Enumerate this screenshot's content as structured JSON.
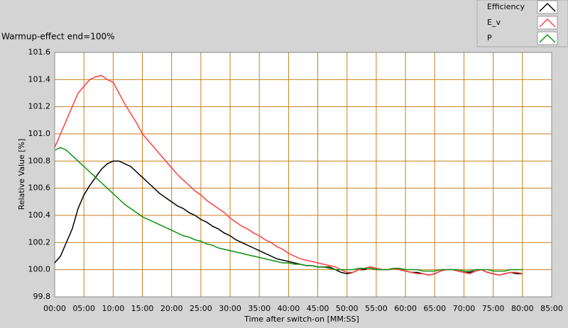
{
  "chart_data": {
    "type": "line",
    "title": "Warmup-effect end=100%",
    "x_label": "Time after switch-on [MM:SS]",
    "y_label": "Relative Value [%]",
    "grid": true,
    "grid_color": "#c8801e",
    "legend_position": "top-right",
    "xlim": [
      0,
      85
    ],
    "ylim": [
      99.8,
      101.6
    ],
    "xticks": [
      {
        "value": 0,
        "label": "00:00"
      },
      {
        "value": 5,
        "label": "05:00"
      },
      {
        "value": 10,
        "label": "10:00"
      },
      {
        "value": 15,
        "label": "15:00"
      },
      {
        "value": 20,
        "label": "20:00"
      },
      {
        "value": 25,
        "label": "25:00"
      },
      {
        "value": 30,
        "label": "30:00"
      },
      {
        "value": 35,
        "label": "35:00"
      },
      {
        "value": 40,
        "label": "40:00"
      },
      {
        "value": 45,
        "label": "45:00"
      },
      {
        "value": 50,
        "label": "50:00"
      },
      {
        "value": 55,
        "label": "55:00"
      },
      {
        "value": 60,
        "label": "60:00"
      },
      {
        "value": 65,
        "label": "65:00"
      },
      {
        "value": 70,
        "label": "70:00"
      },
      {
        "value": 75,
        "label": "75:00"
      },
      {
        "value": 80,
        "label": "80:00"
      },
      {
        "value": 85,
        "label": "85:00"
      }
    ],
    "yticks": [
      99.8,
      100,
      {
        "value": 100.0,
        "label": "100.0"
      },
      100.2,
      100.4,
      100.6,
      100.8,
      {
        "value": 101,
        "label": "101.0"
      },
      101.2,
      101.4,
      101.6
    ],
    "x": [
      0,
      1,
      2,
      3,
      4,
      5,
      6,
      7,
      8,
      9,
      10,
      11,
      12,
      13,
      14,
      15,
      16,
      17,
      18,
      19,
      20,
      21,
      22,
      23,
      24,
      25,
      26,
      27,
      28,
      29,
      30,
      31,
      32,
      33,
      34,
      35,
      36,
      37,
      38,
      39,
      40,
      41,
      42,
      43,
      44,
      45,
      46,
      47,
      48,
      49,
      50,
      51,
      52,
      53,
      54,
      55,
      56,
      57,
      58,
      59,
      60,
      61,
      62,
      63,
      64,
      65,
      66,
      67,
      68,
      69,
      70,
      71,
      72,
      73,
      74,
      75,
      76,
      77,
      78,
      79,
      80
    ],
    "series": [
      {
        "name": "Efficiency",
        "color": "#000000",
        "values": [
          100.05,
          100.1,
          100.2,
          100.3,
          100.45,
          100.55,
          100.62,
          100.68,
          100.74,
          100.78,
          100.8,
          100.8,
          100.78,
          100.76,
          100.72,
          100.68,
          100.64,
          100.6,
          100.56,
          100.53,
          100.5,
          100.47,
          100.45,
          100.42,
          100.4,
          100.37,
          100.35,
          100.32,
          100.3,
          100.27,
          100.25,
          100.22,
          100.2,
          100.18,
          100.16,
          100.14,
          100.12,
          100.1,
          100.08,
          100.07,
          100.06,
          100.05,
          100.04,
          100.03,
          100.03,
          100.02,
          100.02,
          100.02,
          100.0,
          99.98,
          99.97,
          99.98,
          100.0,
          100.0,
          100.02,
          100.01,
          100.0,
          100.0,
          100.01,
          100.0,
          99.99,
          99.98,
          99.98,
          99.97,
          99.96,
          99.97,
          99.99,
          100.0,
          100.0,
          99.99,
          99.98,
          99.98,
          99.99,
          100.0,
          99.98,
          99.97,
          99.96,
          99.97,
          99.98,
          99.97,
          99.97
        ]
      },
      {
        "name": "E_v",
        "color": "#ff4040",
        "values": [
          100.9,
          101.0,
          101.1,
          101.2,
          101.3,
          101.35,
          101.4,
          101.42,
          101.43,
          101.4,
          101.38,
          101.3,
          101.22,
          101.15,
          101.08,
          101.0,
          100.95,
          100.9,
          100.85,
          100.8,
          100.75,
          100.7,
          100.66,
          100.62,
          100.58,
          100.55,
          100.51,
          100.48,
          100.45,
          100.42,
          100.38,
          100.35,
          100.32,
          100.3,
          100.27,
          100.25,
          100.22,
          100.2,
          100.17,
          100.15,
          100.12,
          100.1,
          100.08,
          100.07,
          100.06,
          100.05,
          100.04,
          100.03,
          100.02,
          100.0,
          99.98,
          99.98,
          100.0,
          100.01,
          100.02,
          100.01,
          100.0,
          100.0,
          100.01,
          100.0,
          99.99,
          99.98,
          99.97,
          99.97,
          99.96,
          99.97,
          99.99,
          100.0,
          100.0,
          99.99,
          99.98,
          99.97,
          99.99,
          100.0,
          99.98,
          99.97,
          99.96,
          99.97,
          99.98,
          99.98,
          99.97
        ]
      },
      {
        "name": "P",
        "color": "#109010",
        "values": [
          100.88,
          100.9,
          100.88,
          100.84,
          100.8,
          100.76,
          100.72,
          100.68,
          100.64,
          100.6,
          100.56,
          100.52,
          100.48,
          100.45,
          100.42,
          100.39,
          100.37,
          100.35,
          100.33,
          100.31,
          100.29,
          100.27,
          100.25,
          100.24,
          100.22,
          100.21,
          100.19,
          100.18,
          100.16,
          100.15,
          100.14,
          100.13,
          100.12,
          100.11,
          100.1,
          100.09,
          100.08,
          100.07,
          100.06,
          100.05,
          100.05,
          100.04,
          100.04,
          100.03,
          100.03,
          100.02,
          100.02,
          100.01,
          100.0,
          100.0,
          100.0,
          100.0,
          100.01,
          100.01,
          100.01,
          100.0,
          100.0,
          100.0,
          100.01,
          100.01,
          100.0,
          100.0,
          100.0,
          99.99,
          99.99,
          99.99,
          100.0,
          100.0,
          100.0,
          100.0,
          99.99,
          99.99,
          100.0,
          100.0,
          100.0,
          99.99,
          99.99,
          99.99,
          100.0,
          100.0,
          100.0
        ]
      }
    ]
  }
}
